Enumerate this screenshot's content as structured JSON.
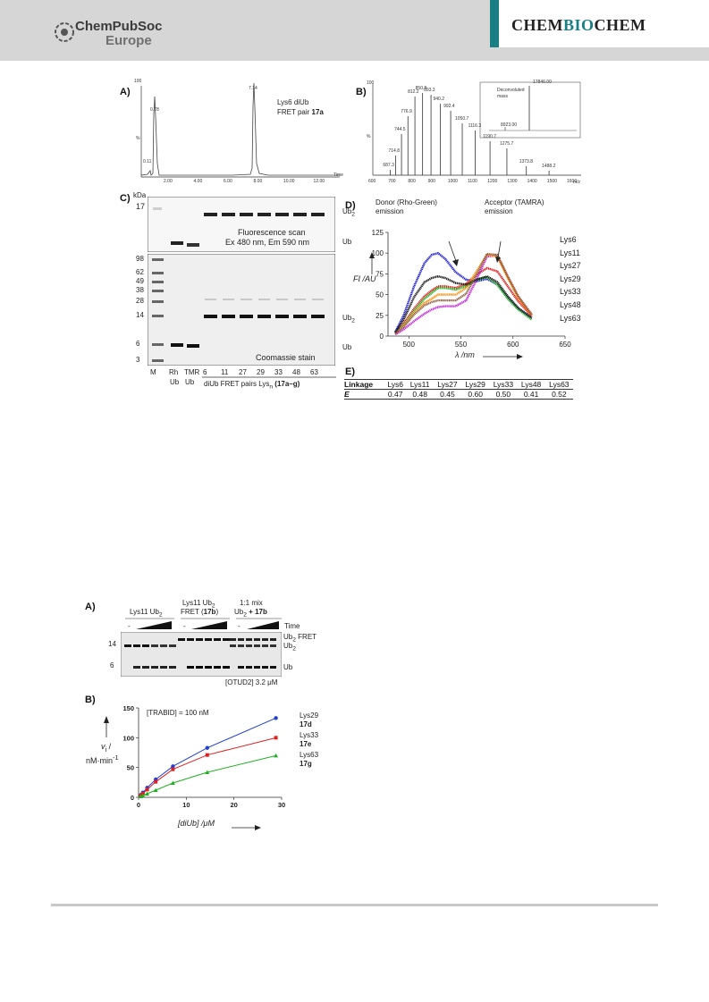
{
  "header": {
    "publisher": "ChemPubSoc",
    "publisher_sub": "Europe",
    "journal_part1": "CHEM",
    "journal_part2": "BIO",
    "journal_part3": "CHEM"
  },
  "fig1": {
    "panelA": {
      "letter": "A)",
      "title_line1": "Lys6 diUb",
      "title_line2": "FRET pair ",
      "title_bold": "17a",
      "peak1": "0.78",
      "peak0": "0.11",
      "peak2": "7.14",
      "ytop": "100",
      "ylabel": "%",
      "xticks": [
        "2.00",
        "4.00",
        "6.00",
        "8.00",
        "10.00",
        "12.00"
      ],
      "xunit": "Time"
    },
    "panelB": {
      "letter": "B)",
      "peaks": [
        "687.3",
        "714.8",
        "744.5",
        "776.9",
        "812.2",
        "850.8",
        "893.3",
        "940.2",
        "992.4",
        "1050.7",
        "1116.3",
        "1190.7",
        "1275.7",
        "1373.8",
        "1488.2"
      ],
      "inset_title1": "Deconvoluted",
      "inset_title2": "mass",
      "inset_peak": "17846.00",
      "inset_small": "8923.00",
      "ytop": "100",
      "ylabel": "%",
      "xticks": [
        "600",
        "700",
        "800",
        "900",
        "1000",
        "1100",
        "1200",
        "1300",
        "1400",
        "1500",
        "1600"
      ],
      "xunit": "m/z"
    },
    "panelC": {
      "letter": "C)",
      "kda": "kDa",
      "top_ladder": [
        "17"
      ],
      "bottom_ladder": [
        "98",
        "62",
        "49",
        "38",
        "28",
        "14",
        "6",
        "3"
      ],
      "fluor_line1": "Fluorescence scan",
      "fluor_line2": "Ex 480 nm, Em 590 nm",
      "coomassie": "Coomassie stain",
      "ub2": "Ub",
      "ub2_sub": "2",
      "ub": "Ub",
      "lanes": [
        "M",
        "Rh",
        "TMR",
        "6",
        "11",
        "27",
        "29",
        "33",
        "48",
        "63"
      ],
      "lane_sub": [
        "",
        "Ub",
        "Ub"
      ],
      "footer_text": "diUb FRET pairs Lys",
      "footer_sub": "n",
      "footer_bold": "(17a–g)"
    },
    "panelD": {
      "letter": "D)",
      "donor_line1": "Donor (Rho-Green)",
      "donor_line2": "emission",
      "acceptor_line1": "Acceptor (TAMRA)",
      "acceptor_line2": "emission",
      "ylabel": "FI /AU",
      "xlabel": "λ /nm",
      "yticks": [
        "0",
        "25",
        "50",
        "75",
        "100",
        "125"
      ],
      "xticks": [
        "500",
        "550",
        "600",
        "650"
      ]
    },
    "panelE": {
      "letter": "E)",
      "row1_head": "Linkage",
      "row2_head": "E",
      "linkages": [
        "Lys6",
        "Lys11",
        "Lys27",
        "Lys29",
        "Lys33",
        "Lys48",
        "Lys63"
      ],
      "efficiencies": [
        "0.47",
        "0.48",
        "0.45",
        "0.60",
        "0.50",
        "0.41",
        "0.52"
      ]
    }
  },
  "fig2": {
    "panelA": {
      "letter": "A)",
      "group1": "Lys11 Ub",
      "group2_line1": "Lys11 Ub",
      "group2_line2": "FRET (",
      "group2_bold": "17b",
      "group3_line1": "1:1 mix",
      "group3_line2": "Ub",
      "group3_bold": "+ 17b",
      "time": "Time",
      "dash": "-",
      "mw14": "14",
      "mw6": "6",
      "ub2fret": "Ub",
      "ub2fret_suffix": "FRET",
      "ub2": "Ub",
      "ub": "Ub",
      "enzyme": "[OTUD2] 3.2 μM"
    },
    "panelB": {
      "letter": "B)",
      "condition": "[TRABID] = 100 nM",
      "ylabel_line1": "v",
      "ylabel_line2": "nM·min",
      "xlabel": "[diUb] /μM",
      "yticks": [
        "0",
        "50",
        "100",
        "150"
      ],
      "xticks": [
        "0",
        "10",
        "20",
        "30"
      ],
      "legend": [
        {
          "name": "Lys29",
          "compound": "17d",
          "color": "#1f3fd6"
        },
        {
          "name": "Lys33",
          "compound": "17e",
          "color": "#e02020"
        },
        {
          "name": "Lys63",
          "compound": "17g",
          "color": "#22b022"
        }
      ]
    }
  },
  "chart_data": [
    {
      "type": "line",
      "title": "",
      "xlabel": "λ /nm",
      "ylabel": "FI /AU",
      "xlim": [
        480,
        650
      ],
      "ylim": [
        0,
        125
      ],
      "legend_position": "right",
      "series": [
        {
          "name": "Lys6",
          "color": "#1a1ac8",
          "x": [
            487,
            495,
            505,
            515,
            522,
            528,
            535,
            545,
            555,
            565,
            575,
            585,
            595,
            605,
            618
          ],
          "y": [
            5,
            25,
            60,
            88,
            98,
            100,
            93,
            77,
            68,
            66,
            69,
            62,
            46,
            33,
            22
          ]
        },
        {
          "name": "Lys11",
          "color": "#e01818",
          "x": [
            487,
            495,
            505,
            515,
            522,
            528,
            535,
            545,
            555,
            565,
            575,
            585,
            595,
            605,
            618
          ],
          "y": [
            3,
            15,
            33,
            48,
            55,
            60,
            60,
            58,
            63,
            74,
            82,
            78,
            60,
            42,
            24
          ]
        },
        {
          "name": "Lys27",
          "color": "#18b018",
          "x": [
            487,
            495,
            505,
            515,
            522,
            528,
            535,
            545,
            555,
            565,
            575,
            585,
            595,
            605,
            618
          ],
          "y": [
            3,
            13,
            30,
            45,
            52,
            58,
            58,
            56,
            60,
            68,
            71,
            62,
            45,
            32,
            20
          ]
        },
        {
          "name": "Lys29",
          "color": "#c020d8",
          "x": [
            487,
            495,
            505,
            515,
            522,
            528,
            535,
            545,
            555,
            565,
            575,
            585,
            595,
            605,
            618
          ],
          "y": [
            2,
            8,
            18,
            27,
            32,
            35,
            36,
            36,
            43,
            68,
            96,
            97,
            72,
            48,
            26
          ]
        },
        {
          "name": "Lys33",
          "color": "#ff8a00",
          "x": [
            487,
            495,
            505,
            515,
            522,
            528,
            535,
            545,
            555,
            565,
            575,
            585,
            595,
            605,
            618
          ],
          "y": [
            3,
            12,
            28,
            40,
            45,
            50,
            50,
            50,
            58,
            78,
            98,
            96,
            70,
            46,
            25
          ]
        },
        {
          "name": "Lys48",
          "color": "#151515",
          "x": [
            487,
            495,
            505,
            515,
            522,
            528,
            535,
            545,
            555,
            565,
            575,
            585,
            595,
            605,
            618
          ],
          "y": [
            4,
            20,
            47,
            65,
            70,
            72,
            70,
            64,
            62,
            68,
            72,
            65,
            48,
            34,
            22
          ]
        },
        {
          "name": "Lys63",
          "color": "#8c5a3c",
          "x": [
            487,
            495,
            505,
            515,
            522,
            528,
            535,
            545,
            555,
            565,
            575,
            585,
            595,
            605,
            618
          ],
          "y": [
            3,
            11,
            26,
            37,
            41,
            43,
            43,
            43,
            51,
            74,
            99,
            98,
            72,
            48,
            26
          ]
        }
      ]
    },
    {
      "type": "scatter",
      "title": "",
      "xlabel": "[diUb] /μM",
      "ylabel": "vi / nM·min-1",
      "xlim": [
        0,
        30
      ],
      "ylim": [
        0,
        150
      ],
      "legend_position": "right",
      "series": [
        {
          "name": "Lys29",
          "color": "#1f3fd6",
          "x": [
            0.45,
            0.9,
            1.8,
            3.6,
            7.2,
            14.4,
            28.8
          ],
          "y": [
            4,
            8,
            16,
            30,
            52,
            83,
            133
          ]
        },
        {
          "name": "Lys33",
          "color": "#e02020",
          "x": [
            0.45,
            0.9,
            1.8,
            3.6,
            7.2,
            14.4,
            28.8
          ],
          "y": [
            3,
            6,
            13,
            26,
            47,
            71,
            100
          ]
        },
        {
          "name": "Lys63",
          "color": "#22b022",
          "x": [
            0.45,
            0.9,
            1.8,
            3.6,
            7.2,
            14.4,
            28.8
          ],
          "y": [
            1.5,
            3,
            6,
            12,
            24,
            42,
            70
          ]
        }
      ]
    }
  ]
}
